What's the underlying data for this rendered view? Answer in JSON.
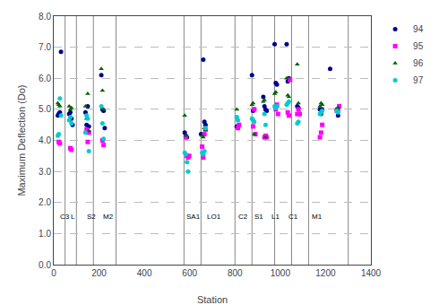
{
  "chart_data": {
    "type": "scatter",
    "xlabel": "Station",
    "ylabel": "Maximum Deflection (Do)",
    "xlim": [
      0,
      1400
    ],
    "ylim": [
      0.0,
      8.0
    ],
    "xticks": [
      0,
      200,
      400,
      600,
      800,
      1000,
      1200,
      1400
    ],
    "yticks": [
      {
        "value": 0.0,
        "label": "0.0"
      },
      {
        "value": 1.0,
        "label": "1.0"
      },
      {
        "value": 2.0,
        "label": "2.0"
      },
      {
        "value": 3.0,
        "label": "3.0"
      },
      {
        "value": 4.0,
        "label": "4.0"
      },
      {
        "value": 5.0,
        "label": "5.0"
      },
      {
        "value": 6.0,
        "label": "6.0"
      },
      {
        "value": 7.0,
        "label": "7.0"
      },
      {
        "value": 8.0,
        "label": "8.0"
      }
    ],
    "grid": true,
    "legend": "right",
    "vlines": [
      50,
      100,
      175,
      275,
      575,
      650,
      800,
      875,
      975,
      1050,
      1125,
      1300
    ],
    "annotations": [
      {
        "text": "C3",
        "x": 18,
        "y": 1.55
      },
      {
        "text": "L",
        "x": 68,
        "y": 1.55
      },
      {
        "text": "S2",
        "x": 140,
        "y": 1.55
      },
      {
        "text": "M2",
        "x": 210,
        "y": 1.55
      },
      {
        "text": "SA1",
        "x": 578,
        "y": 1.55
      },
      {
        "text": "LO1",
        "x": 668,
        "y": 1.55
      },
      {
        "text": "C2",
        "x": 808,
        "y": 1.55
      },
      {
        "text": "S1",
        "x": 878,
        "y": 1.55
      },
      {
        "text": "L1",
        "x": 955,
        "y": 1.55
      },
      {
        "text": "C1",
        "x": 1028,
        "y": 1.55
      },
      {
        "text": "M1",
        "x": 1130,
        "y": 1.55
      }
    ],
    "series": [
      {
        "name": "94",
        "color": "#00008B",
        "marker": "circle",
        "x": [
          18,
          22,
          27,
          32,
          68,
          73,
          78,
          83,
          140,
          145,
          150,
          155,
          210,
          215,
          220,
          225,
          578,
          583,
          588,
          650,
          660,
          665,
          670,
          808,
          813,
          875,
          880,
          885,
          925,
          930,
          935,
          940,
          975,
          980,
          985,
          1028,
          1033,
          1038,
          1075,
          1080,
          1085,
          1175,
          1180,
          1185,
          1220,
          1250,
          1255
        ],
        "values": [
          4.8,
          4.85,
          4.9,
          6.85,
          4.85,
          4.9,
          4.7,
          4.5,
          4.9,
          4.5,
          5.1,
          4.45,
          6.1,
          5.0,
          4.95,
          4.4,
          4.25,
          4.15,
          4.1,
          4.2,
          6.6,
          4.6,
          4.5,
          4.45,
          4.4,
          6.1,
          4.95,
          5.0,
          5.4,
          5.1,
          5.0,
          4.95,
          7.1,
          5.85,
          5.8,
          7.1,
          5.9,
          6.0,
          5.1,
          5.05,
          4.85,
          5.0,
          4.85,
          5.0,
          6.3,
          5.0,
          4.8
        ]
      },
      {
        "name": "95",
        "color": "#FF00FF",
        "marker": "square",
        "x": [
          22,
          27,
          73,
          78,
          145,
          150,
          155,
          215,
          220,
          583,
          588,
          593,
          598,
          655,
          660,
          665,
          670,
          813,
          818,
          880,
          885,
          890,
          930,
          935,
          940,
          980,
          985,
          990,
          1033,
          1038,
          1043,
          1075,
          1080,
          1085,
          1175,
          1180,
          1185,
          1250,
          1255,
          1260
        ],
        "values": [
          3.95,
          3.9,
          3.75,
          3.7,
          4.35,
          3.95,
          4.25,
          4.0,
          3.85,
          4.1,
          3.5,
          3.45,
          3.5,
          3.8,
          3.45,
          4.2,
          4.35,
          4.4,
          4.5,
          4.45,
          5.0,
          4.2,
          4.1,
          4.15,
          4.1,
          5.0,
          5.15,
          4.85,
          4.9,
          4.8,
          5.95,
          4.85,
          5.0,
          4.85,
          4.1,
          4.25,
          4.5,
          4.95,
          5.0,
          5.1
        ]
      },
      {
        "name": "96",
        "color": "#006400",
        "marker": "triangle-up",
        "x": [
          18,
          22,
          27,
          68,
          73,
          78,
          140,
          145,
          150,
          155,
          210,
          215,
          220,
          578,
          583,
          655,
          660,
          665,
          670,
          808,
          875,
          880,
          885,
          925,
          930,
          935,
          975,
          980,
          985,
          1028,
          1033,
          1038,
          1075,
          1080,
          1175,
          1180,
          1185,
          1250,
          1255
        ],
        "values": [
          5.2,
          5.15,
          5.1,
          5.1,
          5.0,
          5.05,
          5.1,
          4.7,
          5.5,
          4.3,
          6.3,
          5.6,
          5.0,
          4.8,
          4.15,
          4.15,
          4.1,
          4.4,
          4.35,
          5.0,
          5.15,
          5.2,
          4.2,
          5.25,
          5.3,
          4.1,
          5.5,
          5.55,
          5.1,
          6.0,
          5.45,
          5.4,
          6.45,
          5.2,
          5.1,
          5.2,
          5.15,
          5.0,
          5.05
        ]
      },
      {
        "name": "97",
        "color": "#00CCCC",
        "marker": "circle",
        "x": [
          18,
          22,
          27,
          32,
          68,
          73,
          78,
          140,
          145,
          150,
          155,
          210,
          215,
          220,
          578,
          583,
          588,
          593,
          655,
          660,
          665,
          670,
          808,
          813,
          875,
          880,
          885,
          930,
          935,
          975,
          980,
          985,
          1028,
          1033,
          1038,
          1075,
          1080,
          1175,
          1180,
          1185,
          1250,
          1255
        ],
        "values": [
          4.15,
          4.2,
          5.35,
          4.8,
          4.65,
          4.75,
          4.55,
          4.25,
          4.8,
          4.7,
          3.65,
          5.1,
          4.55,
          4.05,
          3.6,
          3.55,
          3.3,
          3.0,
          3.6,
          3.55,
          3.65,
          4.4,
          4.75,
          4.65,
          4.7,
          4.65,
          4.6,
          4.85,
          4.5,
          5.1,
          5.05,
          5.1,
          5.15,
          5.2,
          5.25,
          4.55,
          4.6,
          4.85,
          4.9,
          4.95,
          4.95,
          4.9
        ]
      }
    ]
  }
}
